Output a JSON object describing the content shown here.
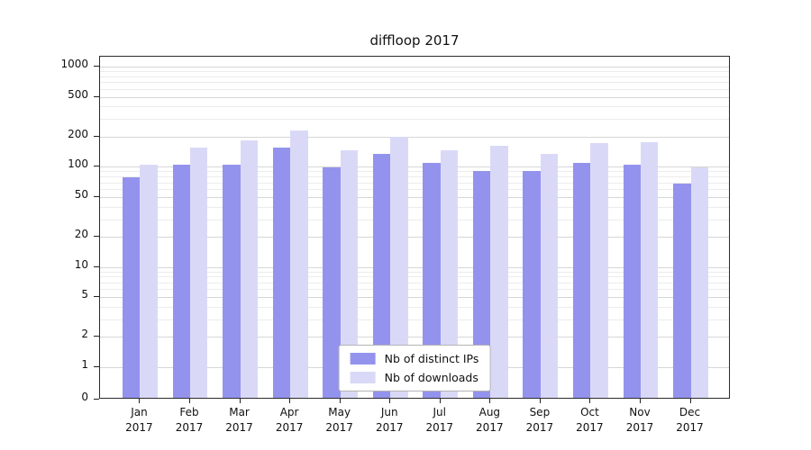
{
  "chart_data": {
    "type": "bar",
    "title": "diffloop 2017",
    "scale": "symlog",
    "categories": [
      "Jan",
      "Feb",
      "Mar",
      "Apr",
      "May",
      "Jun",
      "Jul",
      "Aug",
      "Sep",
      "Oct",
      "Nov",
      "Dec"
    ],
    "year": "2017",
    "series": [
      {
        "name": "Nb of distinct IPs",
        "color": "#9393ee",
        "values": [
          75,
          101,
          100,
          150,
          95,
          130,
          105,
          88,
          87,
          105,
          100,
          65
        ]
      },
      {
        "name": "Nb of downloads",
        "color": "#d9d9f7",
        "values": [
          100,
          150,
          175,
          220,
          140,
          190,
          140,
          155,
          130,
          165,
          170,
          95
        ]
      }
    ],
    "yticks": [
      0,
      1,
      2,
      5,
      10,
      20,
      50,
      100,
      200,
      500,
      1000
    ],
    "ylim": [
      0,
      1300
    ],
    "grid": true,
    "legend_position": "lower center"
  }
}
